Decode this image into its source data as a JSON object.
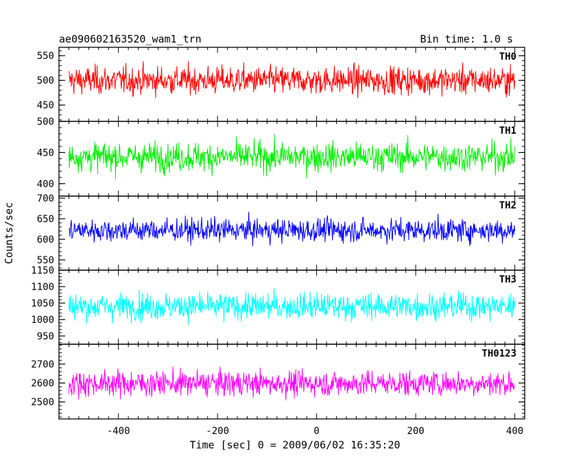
{
  "header": {
    "title": "ae090602163520_wam1_trn",
    "bin_time": "Bin time: 1.0 s"
  },
  "axes": {
    "xlabel": "Time [sec] 0 = 2009/06/02 16:35:20",
    "ylabel": "Counts/sec"
  },
  "chart_data": {
    "type": "line",
    "title": "ae090602163520_wam1_trn",
    "subtitle": "Bin time: 1.0 s",
    "xlabel": "Time [sec] 0 = 2009/06/02 16:35:20",
    "ylabel": "Counts/sec",
    "xlim": [
      -520,
      420
    ],
    "x_range_data": [
      -500,
      400
    ],
    "x_step": 1.0,
    "x_ticks": [
      -400,
      -200,
      0,
      200,
      400
    ],
    "grid": false,
    "panels": [
      {
        "name": "TH0",
        "color": "#ff0000",
        "ylim": [
          417,
          567
        ],
        "y_ticks": [
          450,
          500,
          550
        ],
        "mean": 500,
        "amplitude": 22
      },
      {
        "name": "TH1",
        "color": "#00ee00",
        "ylim": [
          380,
          500
        ],
        "y_ticks": [
          400,
          450,
          500
        ],
        "mean": 443,
        "amplitude": 18
      },
      {
        "name": "TH2",
        "color": "#0000ff",
        "ylim": [
          525,
          705
        ],
        "y_ticks": [
          550,
          600,
          650,
          700
        ],
        "mean": 622,
        "amplitude": 22
      },
      {
        "name": "TH3",
        "color": "#00ffff",
        "ylim": [
          925,
          1150
        ],
        "y_ticks": [
          950,
          1000,
          1050,
          1100,
          1150
        ],
        "mean": 1040,
        "amplitude": 32
      },
      {
        "name": "TH0123",
        "color": "#ff00ff",
        "ylim": [
          2410,
          2805
        ],
        "y_ticks": [
          2500,
          2600,
          2700
        ],
        "mean": 2598,
        "amplitude": 52
      }
    ]
  }
}
